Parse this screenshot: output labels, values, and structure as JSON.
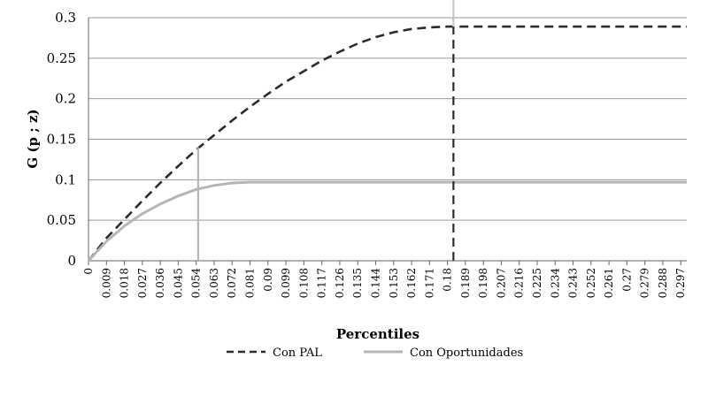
{
  "chart_data": {
    "type": "line",
    "xlabel": "Percentiles",
    "ylabel": "G (p ; z)",
    "ylim": [
      0,
      0.3
    ],
    "yticks": [
      "0",
      "0.05",
      "0.1",
      "0.15",
      "0.2",
      "0.25",
      "0.3"
    ],
    "grid": "horizontal",
    "legend_position": "bottom",
    "categories": [
      "0",
      "0.009",
      "0.018",
      "0.027",
      "0.036",
      "0.045",
      "0.054",
      "0.063",
      "0.072",
      "0.081",
      "0.09",
      "0.099",
      "0.108",
      "0.117",
      "0.126",
      "0.135",
      "0.144",
      "0.153",
      "0.162",
      "0.171",
      "0.18",
      "0.189",
      "0.198",
      "0.207",
      "0.216",
      "0.225",
      "0.234",
      "0.243",
      "0.252",
      "0.261",
      "0.27",
      "0.279",
      "0.288",
      "0.297"
    ],
    "series": [
      {
        "name": "Con PAL",
        "style": "dashed",
        "color": "#2b2b2b",
        "x": [
          0,
          0.009,
          0.018,
          0.027,
          0.036,
          0.045,
          0.054,
          0.063,
          0.072,
          0.081,
          0.09,
          0.099,
          0.108,
          0.117,
          0.126,
          0.135,
          0.144,
          0.153,
          0.162,
          0.171,
          0.18,
          0.189,
          0.198,
          0.207,
          0.216,
          0.225,
          0.234,
          0.243,
          0.252,
          0.261,
          0.27,
          0.279,
          0.288,
          0.297,
          0.3
        ],
        "values": [
          0,
          0.028,
          0.051,
          0.074,
          0.096,
          0.117,
          0.137,
          0.155,
          0.173,
          0.19,
          0.206,
          0.221,
          0.234,
          0.247,
          0.258,
          0.268,
          0.276,
          0.282,
          0.286,
          0.288,
          0.289,
          0.289,
          0.289,
          0.289,
          0.289,
          0.289,
          0.289,
          0.289,
          0.289,
          0.289,
          0.289,
          0.289,
          0.289,
          0.289,
          0.289
        ],
        "marker_x": 0.183,
        "marker_top": 0.3
      },
      {
        "name": "Con Oportunidades",
        "style": "solid",
        "color": "#b5b5b5",
        "x": [
          0,
          0.009,
          0.018,
          0.027,
          0.036,
          0.045,
          0.054,
          0.063,
          0.072,
          0.081,
          0.09,
          0.099,
          0.108,
          0.117,
          0.126,
          0.135,
          0.144,
          0.153,
          0.162,
          0.171,
          0.18,
          0.189,
          0.198,
          0.207,
          0.216,
          0.225,
          0.234,
          0.243,
          0.252,
          0.261,
          0.27,
          0.279,
          0.288,
          0.297,
          0.3
        ],
        "values": [
          0,
          0.024,
          0.043,
          0.058,
          0.07,
          0.08,
          0.088,
          0.093,
          0.096,
          0.097,
          0.097,
          0.097,
          0.097,
          0.097,
          0.097,
          0.097,
          0.097,
          0.097,
          0.097,
          0.097,
          0.097,
          0.097,
          0.097,
          0.097,
          0.097,
          0.097,
          0.097,
          0.097,
          0.097,
          0.097,
          0.097,
          0.097,
          0.097,
          0.097,
          0.097
        ],
        "marker_x": 0.055,
        "marker_top": 0.14
      }
    ]
  }
}
